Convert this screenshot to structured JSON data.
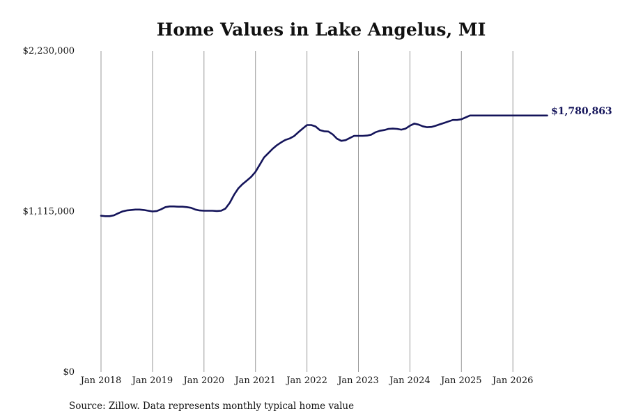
{
  "chart_data": {
    "type": "line",
    "title": "Home Values in Lake Angelus, MI",
    "xlabel": "",
    "ylabel": "",
    "ylim": [
      0,
      2230000
    ],
    "y_ticks": [
      {
        "value": 0,
        "label": "$0"
      },
      {
        "value": 1115000,
        "label": "$1,115,000"
      },
      {
        "value": 2230000,
        "label": "$2,230,000"
      }
    ],
    "x_ticks": [
      "Jan 2018",
      "Jan 2019",
      "Jan 2020",
      "Jan 2021",
      "Jan 2022",
      "Jan 2023",
      "Jan 2024",
      "Jan 2025",
      "Jan 2026"
    ],
    "x_start": "2018-01",
    "grid": "vertical lines at each year",
    "line_color": "#14145a",
    "end_label": "$1,780,863",
    "series": [
      {
        "x": [
          "2018-01",
          "2018-02",
          "2018-03",
          "2018-04",
          "2018-05",
          "2018-06",
          "2018-07",
          "2018-08",
          "2018-09",
          "2018-10",
          "2018-11",
          "2018-12",
          "2019-01",
          "2019-02",
          "2019-03",
          "2019-04",
          "2019-05",
          "2019-06",
          "2019-07",
          "2019-08",
          "2019-09",
          "2019-10",
          "2019-11",
          "2019-12",
          "2020-01",
          "2020-02",
          "2020-03",
          "2020-04",
          "2020-05",
          "2020-06",
          "2020-07",
          "2020-08",
          "2020-09",
          "2020-10",
          "2020-11",
          "2020-12",
          "2021-01",
          "2021-02",
          "2021-03",
          "2021-04",
          "2021-05",
          "2021-06",
          "2021-07",
          "2021-08",
          "2021-09",
          "2021-10",
          "2021-11",
          "2021-12",
          "2022-01",
          "2022-02",
          "2022-03",
          "2022-04",
          "2022-05",
          "2022-06",
          "2022-07",
          "2022-08",
          "2022-09",
          "2022-10",
          "2022-11",
          "2022-12",
          "2023-01",
          "2023-02",
          "2023-03",
          "2023-04",
          "2023-05",
          "2023-06",
          "2023-07",
          "2023-08",
          "2023-09",
          "2023-10",
          "2023-11",
          "2023-12",
          "2024-01",
          "2024-02",
          "2024-03",
          "2024-04",
          "2024-05",
          "2024-06",
          "2024-07",
          "2024-08",
          "2024-09",
          "2024-10",
          "2024-11",
          "2024-12",
          "2025-01",
          "2025-02",
          "2025-03",
          "2025-04",
          "2025-05",
          "2025-06",
          "2025-07",
          "2025-08",
          "2025-09",
          "2025-10",
          "2025-11",
          "2025-12",
          "2026-01",
          "2026-02",
          "2026-03",
          "2026-04",
          "2026-05",
          "2026-06",
          "2026-07",
          "2026-08",
          "2026-09"
        ],
        "values": [
          1085000,
          1082000,
          1082000,
          1088000,
          1102000,
          1115000,
          1122000,
          1125000,
          1128000,
          1128000,
          1125000,
          1120000,
          1115000,
          1118000,
          1130000,
          1145000,
          1150000,
          1150000,
          1148000,
          1148000,
          1145000,
          1140000,
          1128000,
          1122000,
          1120000,
          1120000,
          1120000,
          1118000,
          1120000,
          1135000,
          1175000,
          1230000,
          1275000,
          1305000,
          1330000,
          1355000,
          1390000,
          1440000,
          1490000,
          1520000,
          1550000,
          1575000,
          1595000,
          1612000,
          1622000,
          1638000,
          1665000,
          1690000,
          1715000,
          1715000,
          1705000,
          1680000,
          1672000,
          1670000,
          1650000,
          1620000,
          1605000,
          1610000,
          1625000,
          1640000,
          1640000,
          1640000,
          1642000,
          1648000,
          1665000,
          1675000,
          1680000,
          1688000,
          1690000,
          1688000,
          1683000,
          1690000,
          1710000,
          1725000,
          1718000,
          1706000,
          1700000,
          1702000,
          1710000,
          1720000,
          1730000,
          1740000,
          1750000,
          1750000,
          1755000,
          1768000,
          1780863,
          1780863,
          1780863,
          1780863,
          1780863,
          1780863,
          1780863,
          1780863,
          1780863,
          1780863,
          1780863,
          1780863,
          1780863,
          1780863,
          1780863,
          1780863,
          1780863,
          1780863,
          1780863
        ]
      }
    ]
  },
  "source": "Source: Zillow. Data represents monthly typical home value"
}
